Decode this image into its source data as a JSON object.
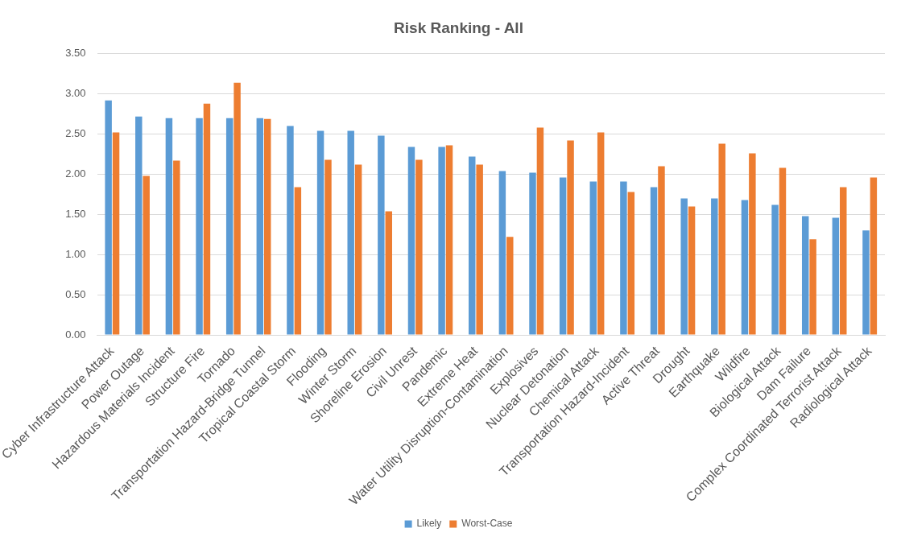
{
  "chart_data": {
    "type": "bar",
    "title": "Risk Ranking - All",
    "categories": [
      "Cyber Infrastructure Attack",
      "Power Outage",
      "Hazardous Materials Incident",
      "Structure Fire",
      "Tornado",
      "Transportation Hazard-Bridge Tunnel",
      "Tropical Coastal Storm",
      "Flooding",
      "Winter Storm",
      "Shoreline Erosion",
      "Civil Unrest",
      "Pandemic",
      "Extreme Heat",
      "Water Utility Disruption-Contamination",
      "Explosives",
      "Nuclear Detonation",
      "Chemical Attack",
      "Transportation Hazard-Incident",
      "Active Threat",
      "Drought",
      "Earthquake",
      "Wildfire",
      "Biological Attack",
      "Dam Failure",
      "Complex Coordinated Terrorist Attack",
      "Radiological Attack"
    ],
    "series": [
      {
        "name": "Likely",
        "color": "#5b9bd5",
        "values": [
          2.92,
          2.72,
          2.7,
          2.7,
          2.7,
          2.7,
          2.6,
          2.54,
          2.54,
          2.48,
          2.34,
          2.34,
          2.22,
          2.04,
          2.02,
          1.96,
          1.91,
          1.91,
          1.84,
          1.7,
          1.7,
          1.68,
          1.62,
          1.48,
          1.46,
          1.3
        ]
      },
      {
        "name": "Worst-Case",
        "color": "#ed7d31",
        "values": [
          2.52,
          1.98,
          2.17,
          2.88,
          3.14,
          2.69,
          1.84,
          2.18,
          2.12,
          1.54,
          2.18,
          2.36,
          2.12,
          1.22,
          2.58,
          2.42,
          2.52,
          1.78,
          2.1,
          1.6,
          2.38,
          2.26,
          2.08,
          1.19,
          1.84,
          1.96
        ]
      }
    ],
    "ylim": [
      0,
      3.5
    ],
    "yticks": [
      {
        "value": 0,
        "label": "0.00"
      },
      {
        "value": 0.5,
        "label": "0.50"
      },
      {
        "value": 1,
        "label": "1.00"
      },
      {
        "value": 1.5,
        "label": "1.50"
      },
      {
        "value": 2,
        "label": "2.00"
      },
      {
        "value": 2.5,
        "label": "2.50"
      },
      {
        "value": 3,
        "label": "3.00"
      },
      {
        "value": 3.5,
        "label": "3.50"
      }
    ],
    "grid": "y",
    "legend": "bottom"
  }
}
